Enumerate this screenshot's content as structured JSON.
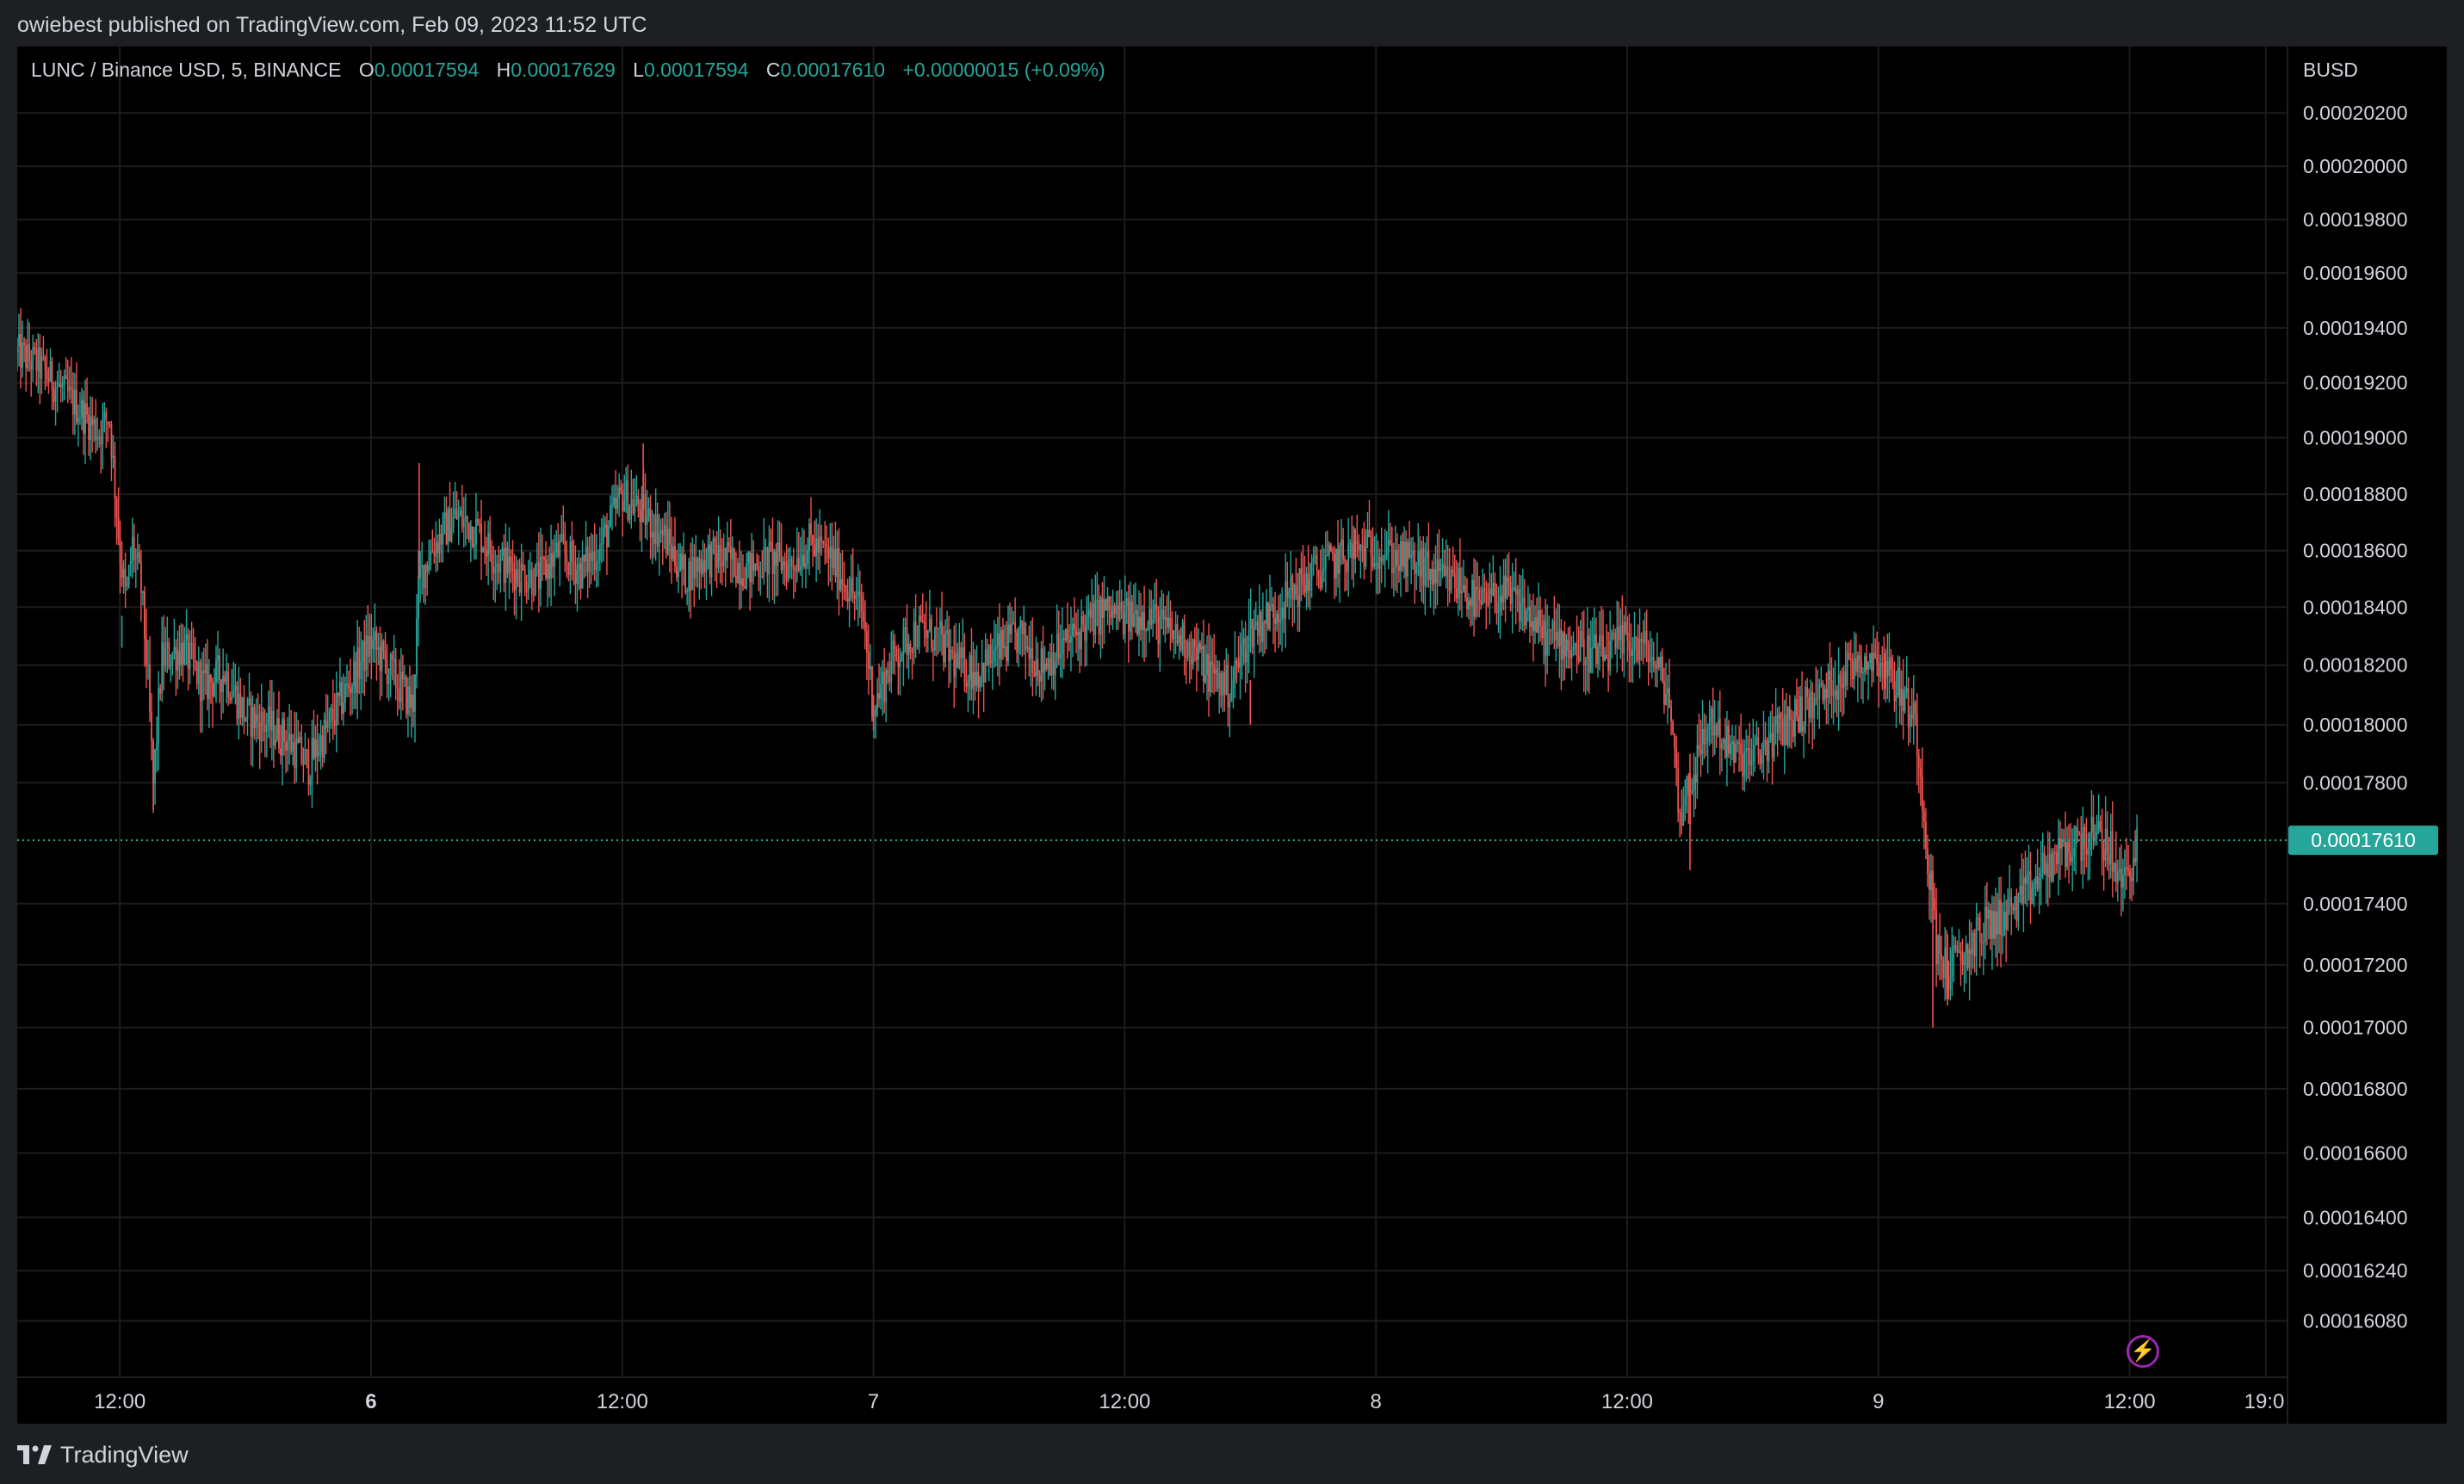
{
  "header": {
    "publish_text": "owiebest published on TradingView.com, Feb 09, 2023 11:52 UTC"
  },
  "legend": {
    "symbol": "LUNC / Binance USD, 5, BINANCE",
    "o_label": "O",
    "o_value": "0.00017594",
    "h_label": "H",
    "h_value": "0.00017629",
    "l_label": "L",
    "l_value": "0.00017594",
    "c_label": "C",
    "c_value": "0.00017610",
    "change": "+0.00000015 (+0.09%)"
  },
  "footer": {
    "brand": "TradingView",
    "logo_icon": "tradingview-logo-icon"
  },
  "toolbar": {
    "flash_icon": "lightning-icon"
  },
  "colors": {
    "background": "#000000",
    "frame": "#1e1f22",
    "grid": "#1c1c1c",
    "up": "#26a69a",
    "down": "#ef5350",
    "text": "#d1d4dc",
    "accent": "#9c27b0"
  },
  "chart_data": {
    "type": "candlestick",
    "title": "LUNC / Binance USD, 5, BINANCE",
    "currency_label": "BUSD",
    "interval": "5",
    "exchange": "BINANCE",
    "last_price": 0.0001761,
    "last_price_label": "0.00017610",
    "y_ticks": [
      {
        "label": "0.00020200",
        "value": 0.000202
      },
      {
        "label": "0.00020000",
        "value": 0.0002
      },
      {
        "label": "0.00019800",
        "value": 0.000198
      },
      {
        "label": "0.00019600",
        "value": 0.000196
      },
      {
        "label": "0.00019400",
        "value": 0.000194
      },
      {
        "label": "0.00019200",
        "value": 0.000192
      },
      {
        "label": "0.00019000",
        "value": 0.00019
      },
      {
        "label": "0.00018800",
        "value": 0.000188
      },
      {
        "label": "0.00018600",
        "value": 0.000186
      },
      {
        "label": "0.00018400",
        "value": 0.000184
      },
      {
        "label": "0.00018200",
        "value": 0.000182
      },
      {
        "label": "0.00018000",
        "value": 0.00018
      },
      {
        "label": "0.00017800",
        "value": 0.000178
      },
      {
        "label": "0.00017400",
        "value": 0.000174
      },
      {
        "label": "0.00017200",
        "value": 0.000172
      },
      {
        "label": "0.00017000",
        "value": 0.00017
      },
      {
        "label": "0.00016800",
        "value": 0.000168
      },
      {
        "label": "0.00016600",
        "value": 0.000166
      },
      {
        "label": "0.00016400",
        "value": 0.000164
      },
      {
        "label": "0.00016240",
        "value": 0.0001624
      },
      {
        "label": "0.00016080",
        "value": 0.0001608
      }
    ],
    "x_ticks": [
      {
        "label": "12:00",
        "t": 12,
        "bold": false
      },
      {
        "label": "6",
        "t": 24,
        "bold": true
      },
      {
        "label": "12:00",
        "t": 36,
        "bold": false
      },
      {
        "label": "7",
        "t": 48,
        "bold": false
      },
      {
        "label": "12:00",
        "t": 60,
        "bold": false
      },
      {
        "label": "8",
        "t": 72,
        "bold": false
      },
      {
        "label": "12:00",
        "t": 84,
        "bold": false
      },
      {
        "label": "9",
        "t": 96,
        "bold": false
      },
      {
        "label": "12:00",
        "t": 108,
        "bold": false
      },
      {
        "label": "19:0",
        "t": 114.5,
        "bold": false
      }
    ],
    "x_range": [
      7.1,
      115.5
    ],
    "price_path": [
      [
        7.1,
        0.0001931
      ],
      [
        8.0,
        0.0001927
      ],
      [
        9.0,
        0.0001919
      ],
      [
        10.0,
        0.0001911
      ],
      [
        11.0,
        0.0001902
      ],
      [
        11.5,
        0.0001908
      ],
      [
        12.0,
        0.000186
      ],
      [
        12.3,
        0.0001842
      ],
      [
        12.6,
        0.0001862
      ],
      [
        13.0,
        0.0001848
      ],
      [
        13.3,
        0.000182
      ],
      [
        13.6,
        0.0001779
      ],
      [
        14.0,
        0.0001822
      ],
      [
        15.0,
        0.0001826
      ],
      [
        16.0,
        0.0001813
      ],
      [
        17.0,
        0.0001818
      ],
      [
        18.0,
        0.0001803
      ],
      [
        19.0,
        0.00018
      ],
      [
        20.0,
        0.0001795
      ],
      [
        21.0,
        0.0001786
      ],
      [
        22.0,
        0.00018
      ],
      [
        23.0,
        0.0001814
      ],
      [
        24.0,
        0.0001828
      ],
      [
        25.0,
        0.0001817
      ],
      [
        26.0,
        0.0001806
      ],
      [
        26.3,
        0.000185
      ],
      [
        27.0,
        0.0001862
      ],
      [
        28.0,
        0.0001872
      ],
      [
        29.0,
        0.0001868
      ],
      [
        30.0,
        0.0001857
      ],
      [
        31.0,
        0.0001852
      ],
      [
        32.0,
        0.000185
      ],
      [
        33.0,
        0.000186
      ],
      [
        34.0,
        0.0001853
      ],
      [
        35.0,
        0.0001862
      ],
      [
        36.0,
        0.000188
      ],
      [
        37.0,
        0.0001873
      ],
      [
        38.0,
        0.0001865
      ],
      [
        39.0,
        0.0001851
      ],
      [
        40.0,
        0.0001858
      ],
      [
        41.0,
        0.0001857
      ],
      [
        42.0,
        0.0001853
      ],
      [
        43.0,
        0.0001857
      ],
      [
        44.0,
        0.0001855
      ],
      [
        45.0,
        0.0001863
      ],
      [
        46.0,
        0.0001857
      ],
      [
        47.0,
        0.0001845
      ],
      [
        47.5,
        0.0001837
      ],
      [
        48.0,
        0.0001806
      ],
      [
        49.0,
        0.0001823
      ],
      [
        50.0,
        0.0001832
      ],
      [
        51.0,
        0.000183
      ],
      [
        52.0,
        0.000182
      ],
      [
        53.0,
        0.0001818
      ],
      [
        54.0,
        0.0001825
      ],
      [
        55.0,
        0.000183
      ],
      [
        56.0,
        0.000182
      ],
      [
        57.0,
        0.0001826
      ],
      [
        58.0,
        0.0001833
      ],
      [
        59.0,
        0.0001839
      ],
      [
        60.0,
        0.0001836
      ],
      [
        61.0,
        0.0001838
      ],
      [
        62.0,
        0.0001832
      ],
      [
        63.0,
        0.0001828
      ],
      [
        64.0,
        0.0001818
      ],
      [
        65.0,
        0.0001812
      ],
      [
        66.0,
        0.0001832
      ],
      [
        67.0,
        0.0001838
      ],
      [
        68.0,
        0.0001845
      ],
      [
        69.0,
        0.0001852
      ],
      [
        70.0,
        0.0001856
      ],
      [
        71.0,
        0.000186
      ],
      [
        72.0,
        0.0001861
      ],
      [
        73.0,
        0.0001857
      ],
      [
        74.0,
        0.0001855
      ],
      [
        75.0,
        0.000185
      ],
      [
        76.0,
        0.0001848
      ],
      [
        77.0,
        0.000184
      ],
      [
        78.0,
        0.0001845
      ],
      [
        79.0,
        0.000184
      ],
      [
        80.0,
        0.000183
      ],
      [
        81.0,
        0.0001828
      ],
      [
        82.0,
        0.0001825
      ],
      [
        83.0,
        0.0001823
      ],
      [
        84.0,
        0.0001829
      ],
      [
        85.0,
        0.0001825
      ],
      [
        86.0,
        0.000181
      ],
      [
        86.5,
        0.000177
      ],
      [
        87.0,
        0.000178
      ],
      [
        88.0,
        0.0001802
      ],
      [
        89.0,
        0.000179
      ],
      [
        90.0,
        0.0001788
      ],
      [
        91.0,
        0.0001796
      ],
      [
        92.0,
        0.0001803
      ],
      [
        93.0,
        0.0001808
      ],
      [
        94.0,
        0.0001815
      ],
      [
        95.0,
        0.0001822
      ],
      [
        96.0,
        0.0001823
      ],
      [
        97.0,
        0.0001812
      ],
      [
        97.8,
        0.00018
      ],
      [
        98.3,
        0.000176
      ],
      [
        98.8,
        0.0001725
      ],
      [
        99.3,
        0.0001718
      ],
      [
        100.0,
        0.0001722
      ],
      [
        101.0,
        0.0001732
      ],
      [
        102.0,
        0.0001736
      ],
      [
        103.0,
        0.0001742
      ],
      [
        104.0,
        0.0001752
      ],
      [
        105.0,
        0.0001758
      ],
      [
        106.0,
        0.0001762
      ],
      [
        107.0,
        0.000176
      ],
      [
        107.5,
        0.0001746
      ],
      [
        108.0,
        0.0001752
      ],
      [
        108.4,
        0.0001761
      ]
    ],
    "wick_spikes": [
      [
        12.1,
        0.0001826,
        0.0001837
      ],
      [
        13.6,
        0.0001787,
        0.0001771
      ],
      [
        26.3,
        0.0001891,
        0.000185
      ],
      [
        37.0,
        0.0001898,
        0.000187
      ],
      [
        48.0,
        0.000181,
        0.0001798
      ],
      [
        66.0,
        0.0001815,
        0.00018
      ],
      [
        71.0,
        0.0001868,
        0.0001857
      ],
      [
        87.0,
        0.000179,
        0.0001751
      ],
      [
        96.3,
        0.0001824,
        0.0001812
      ],
      [
        98.6,
        0.0001745,
        0.00017
      ],
      [
        99.3,
        0.000173,
        0.0001707
      ]
    ]
  }
}
